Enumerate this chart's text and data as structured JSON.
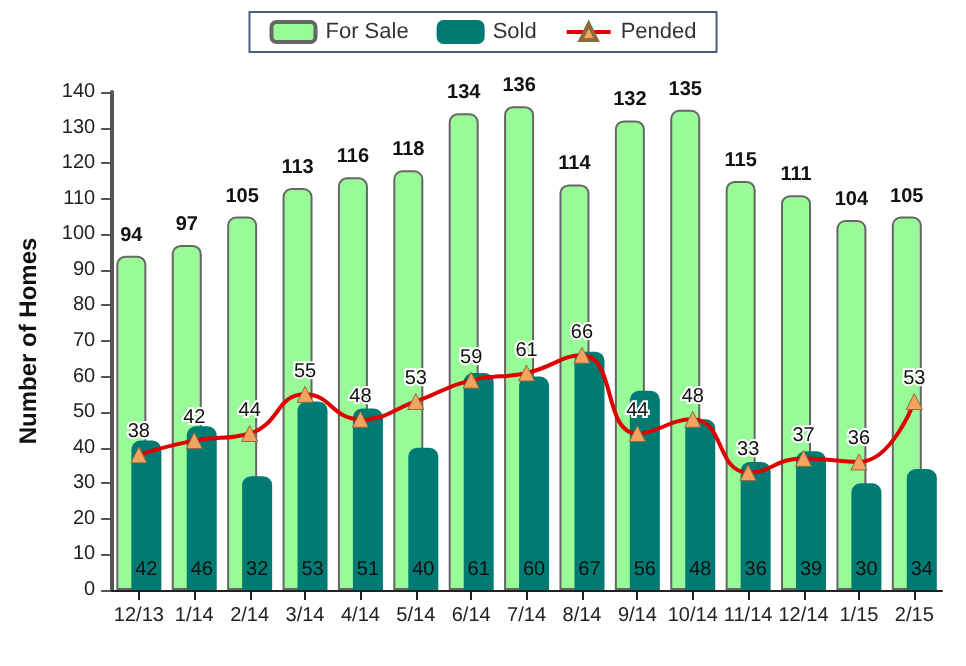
{
  "chart_data": {
    "type": "bar",
    "ylabel": "Number of Homes",
    "categories": [
      "12/13",
      "1/14",
      "2/14",
      "3/14",
      "4/14",
      "5/14",
      "6/14",
      "7/14",
      "8/14",
      "9/14",
      "10/14",
      "11/14",
      "12/14",
      "1/15",
      "2/15"
    ],
    "series": [
      {
        "name": "For Sale",
        "color": "#98fb98",
        "values": [
          94,
          97,
          105,
          113,
          116,
          118,
          134,
          136,
          114,
          132,
          135,
          115,
          111,
          104,
          105
        ]
      },
      {
        "name": "Sold",
        "color": "#007b73",
        "values": [
          42,
          46,
          32,
          53,
          51,
          40,
          61,
          60,
          67,
          56,
          48,
          36,
          39,
          30,
          34
        ]
      },
      {
        "name": "Pended",
        "type": "line",
        "color": "#e00000",
        "marker": "triangle",
        "values": [
          38,
          42,
          44,
          55,
          48,
          53,
          59,
          61,
          66,
          44,
          48,
          33,
          37,
          36,
          53
        ]
      }
    ],
    "ylim": [
      0,
      140
    ],
    "yticks": [
      0,
      10,
      20,
      30,
      40,
      50,
      60,
      70,
      80,
      90,
      100,
      110,
      120,
      130,
      140
    ],
    "grid": false,
    "legend": "top",
    "data_labels": true
  }
}
